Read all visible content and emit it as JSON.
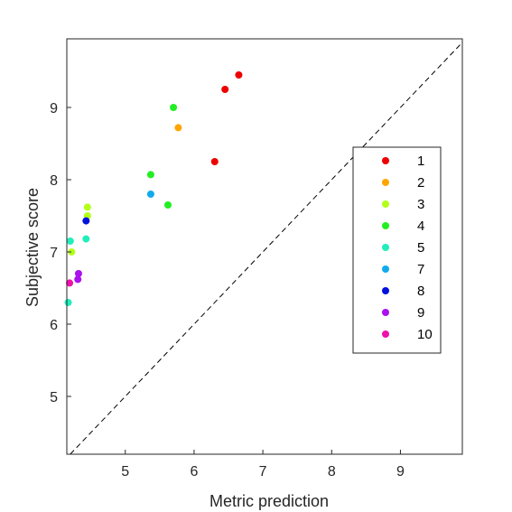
{
  "chart_data": {
    "type": "scatter",
    "title": "",
    "xlabel": "Metric prediction",
    "ylabel": "Subjective score",
    "xlim": [
      4.15,
      9.9
    ],
    "ylim": [
      4.2,
      9.95
    ],
    "xticks": [
      "5",
      "6",
      "7",
      "8",
      "9"
    ],
    "yticks": [
      "5",
      "6",
      "7",
      "8",
      "9"
    ],
    "grid": false,
    "reference_line": {
      "type": "identity",
      "style": "dashed",
      "color": "#000000"
    },
    "legend": {
      "placement": "right"
    },
    "series": [
      {
        "name": "1",
        "color": "#ee0000",
        "points": [
          [
            6.65,
            9.45
          ],
          [
            6.45,
            9.25
          ],
          [
            6.3,
            8.25
          ]
        ]
      },
      {
        "name": "2",
        "color": "#ffa500",
        "points": [
          [
            5.77,
            8.72
          ]
        ]
      },
      {
        "name": "3",
        "color": "#b3ff1a",
        "points": [
          [
            4.45,
            7.62
          ],
          [
            4.45,
            7.5
          ],
          [
            4.22,
            7.0
          ]
        ]
      },
      {
        "name": "4",
        "color": "#22ee22",
        "points": [
          [
            5.7,
            9.0
          ],
          [
            5.37,
            8.07
          ],
          [
            5.62,
            7.65
          ]
        ]
      },
      {
        "name": "5",
        "color": "#22eebb",
        "points": [
          [
            4.2,
            7.15
          ],
          [
            4.43,
            7.18
          ],
          [
            4.17,
            6.3
          ]
        ]
      },
      {
        "name": "7",
        "color": "#11aaee",
        "points": [
          [
            5.37,
            7.8
          ]
        ]
      },
      {
        "name": "8",
        "color": "#0011dd",
        "points": [
          [
            4.43,
            7.43
          ]
        ]
      },
      {
        "name": "9",
        "color": "#aa11ee",
        "points": [
          [
            4.32,
            6.7
          ],
          [
            4.31,
            6.62
          ]
        ]
      },
      {
        "name": "10",
        "color": "#ee11aa",
        "points": [
          [
            4.19,
            6.57
          ]
        ]
      }
    ]
  }
}
